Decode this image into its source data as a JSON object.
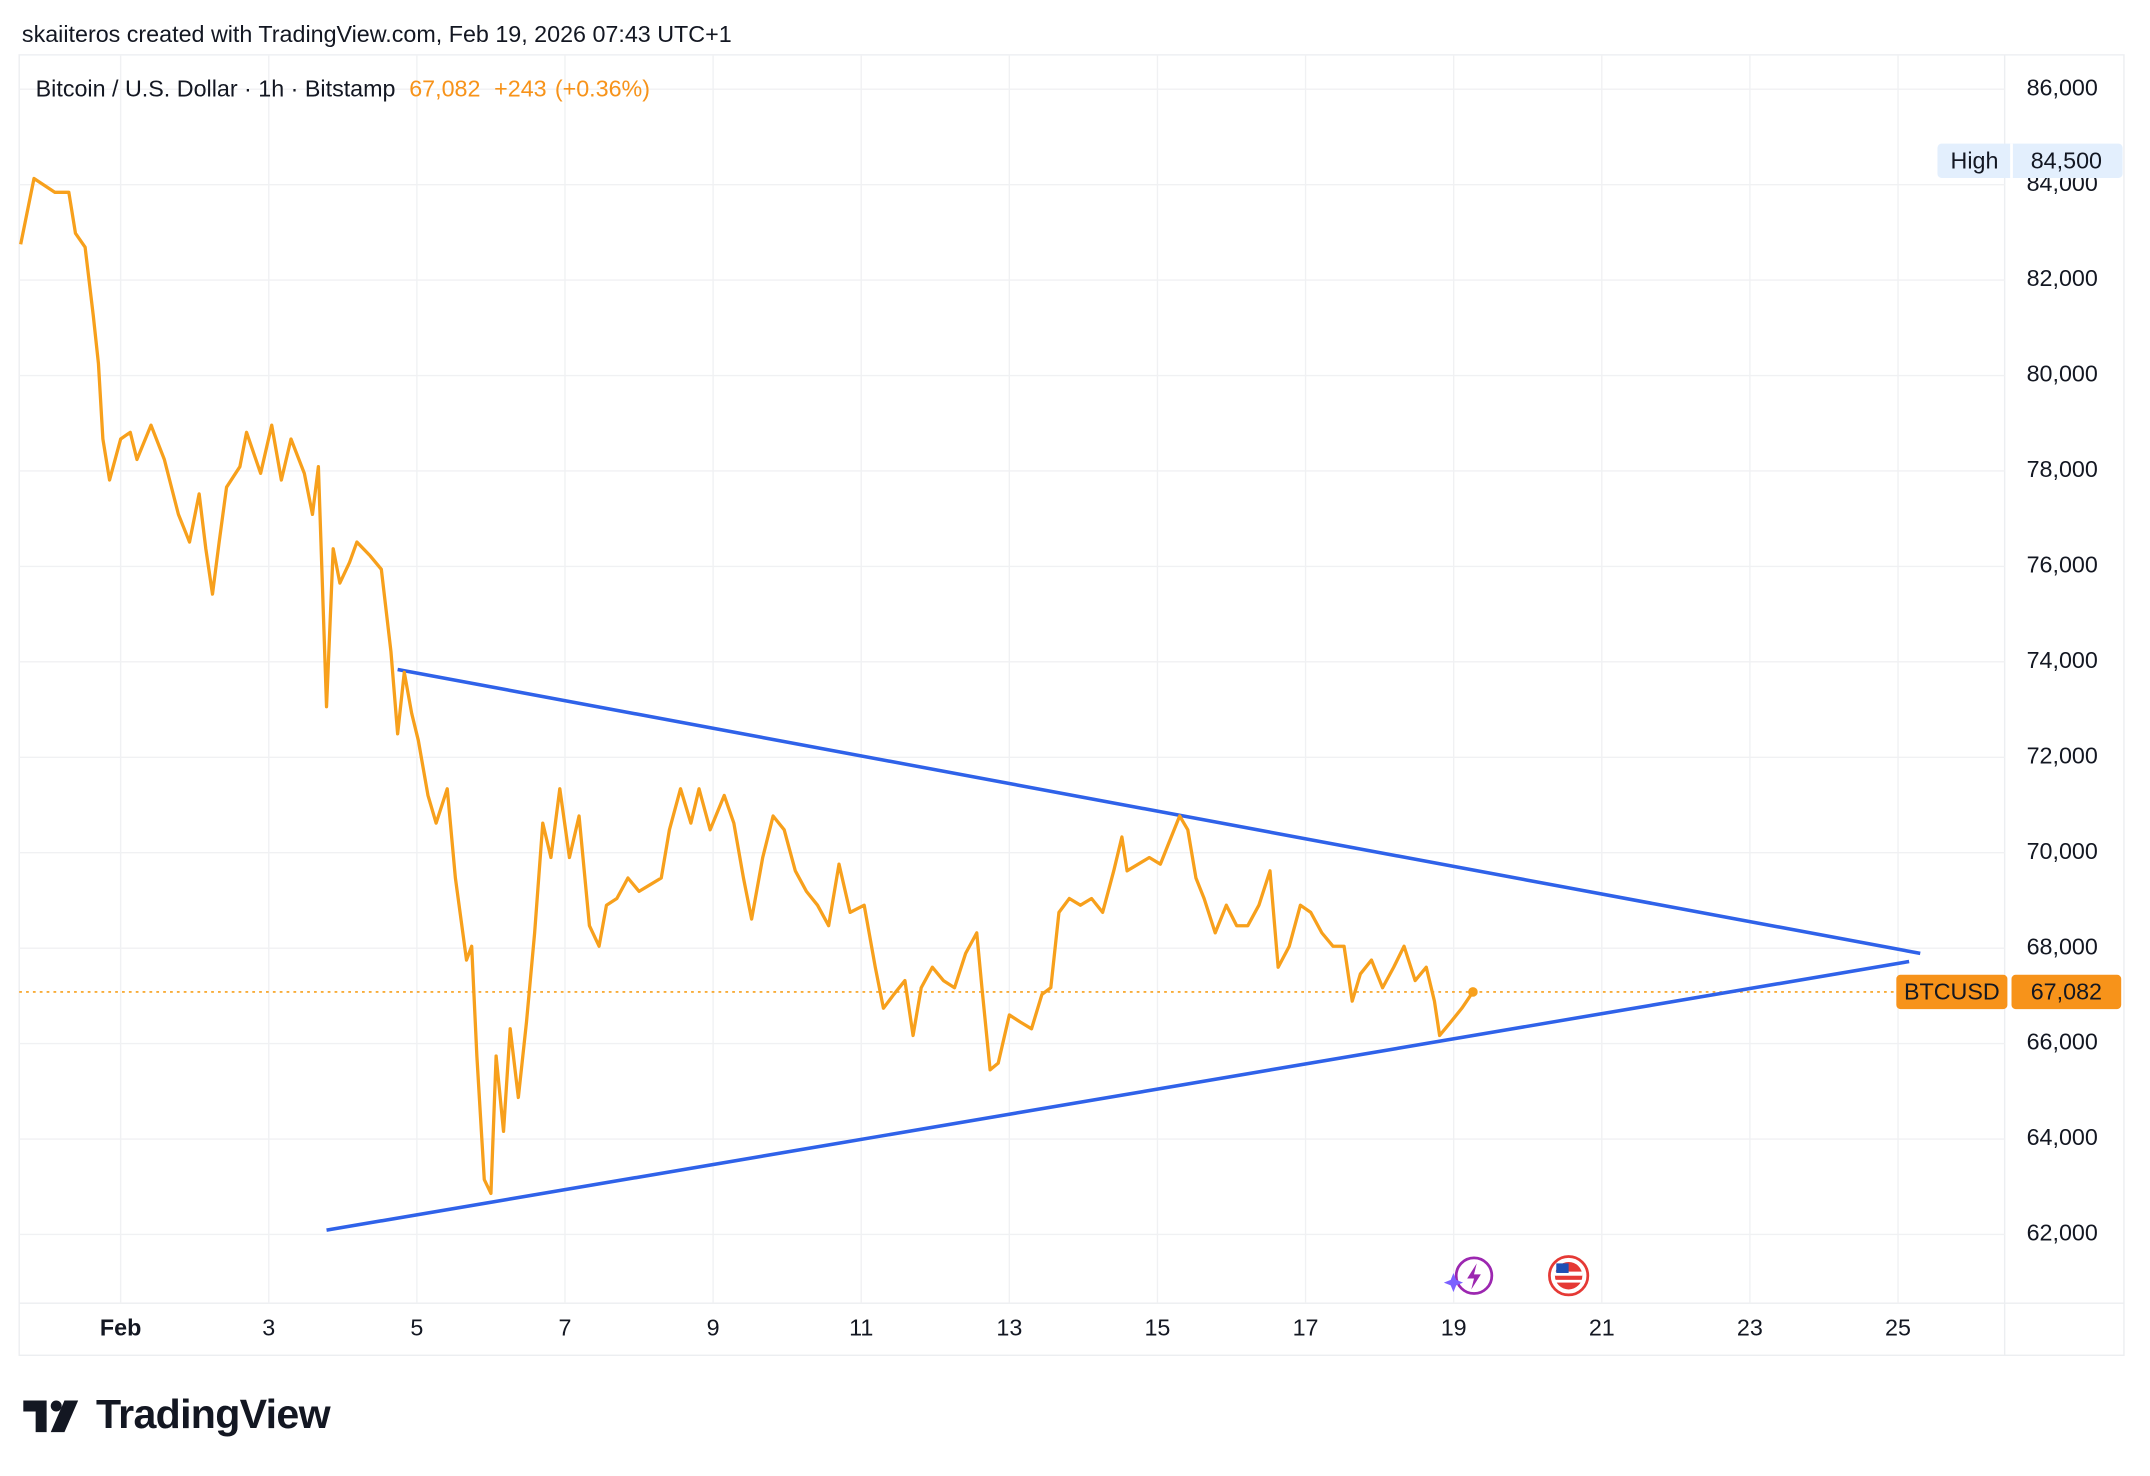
{
  "header": "skaiiteros created with TradingView.com, Feb 19, 2026 07:43 UTC+1",
  "logo": "TradingView",
  "chart_data": {
    "type": "line",
    "title": "Bitcoin / U.S. Dollar · 1h · Bitstamp",
    "price": "67,082",
    "change": "+243",
    "change_pct": "(+0.36%)",
    "xlim": [
      -0.37,
      26.44
    ],
    "ylim": [
      60560,
      86720
    ],
    "xticks": [
      {
        "value": 1,
        "label": "Feb"
      },
      3,
      5,
      7,
      9,
      11,
      13,
      15,
      17,
      19,
      21,
      23,
      25
    ],
    "yticks": [
      {
        "value": 62000,
        "label": "62,000"
      },
      {
        "value": 64000,
        "label": "64,000"
      },
      {
        "value": 66000,
        "label": "66,000"
      },
      {
        "value": 68000,
        "label": "68,000"
      },
      {
        "value": 70000,
        "label": "70,000"
      },
      {
        "value": 72000,
        "label": "72,000"
      },
      {
        "value": 74000,
        "label": "74,000"
      },
      {
        "value": 76000,
        "label": "76,000"
      },
      {
        "value": 78000,
        "label": "78,000"
      },
      {
        "value": 80000,
        "label": "80,000"
      },
      {
        "value": 82000,
        "label": "82,000"
      },
      {
        "value": 84000,
        "label": "84,000"
      },
      {
        "value": 86000,
        "label": "86,000"
      }
    ],
    "grid": true,
    "x": [
      -0.35,
      -0.17,
      0.11,
      0.3,
      0.39,
      0.52,
      0.63,
      0.7,
      0.76,
      0.85,
      1.0,
      1.13,
      1.22,
      1.41,
      1.59,
      1.78,
      1.93,
      2.06,
      2.15,
      2.24,
      2.33,
      2.43,
      2.61,
      2.7,
      2.89,
      3.04,
      3.17,
      3.3,
      3.48,
      3.59,
      3.67,
      3.78,
      3.87,
      3.96,
      4.09,
      4.19,
      4.37,
      4.52,
      4.65,
      4.74,
      4.83,
      4.93,
      5.02,
      5.15,
      5.26,
      5.41,
      5.52,
      5.67,
      5.74,
      5.81,
      5.91,
      6.0,
      6.07,
      6.17,
      6.26,
      6.37,
      6.48,
      6.59,
      6.7,
      6.81,
      6.93,
      7.06,
      7.19,
      7.33,
      7.46,
      7.56,
      7.7,
      7.85,
      8.0,
      8.15,
      8.3,
      8.41,
      8.56,
      8.7,
      8.81,
      8.96,
      9.15,
      9.28,
      9.41,
      9.52,
      9.67,
      9.81,
      9.96,
      10.11,
      10.26,
      10.41,
      10.56,
      10.7,
      10.85,
      11.04,
      11.19,
      11.3,
      11.44,
      11.59,
      11.7,
      11.81,
      11.96,
      12.11,
      12.26,
      12.41,
      12.56,
      12.63,
      12.74,
      12.85,
      13.0,
      13.15,
      13.3,
      13.44,
      13.56,
      13.67,
      13.81,
      13.96,
      14.11,
      14.26,
      14.41,
      14.52,
      14.59,
      14.74,
      14.89,
      15.04,
      15.15,
      15.3,
      15.41,
      15.52,
      15.63,
      15.78,
      15.93,
      16.07,
      16.22,
      16.37,
      16.52,
      16.63,
      16.78,
      16.93,
      17.07,
      17.22,
      17.37,
      17.52,
      17.63,
      17.74,
      17.89,
      18.04,
      18.19,
      18.33,
      18.48,
      18.63,
      18.74,
      18.81,
      18.96,
      19.11,
      19.26
    ],
    "series": [
      {
        "name": "BTCUSD",
        "color": "#f7a01c",
        "values": [
          82750,
          84130,
          83840,
          83840,
          82980,
          82690,
          81260,
          80250,
          78670,
          77810,
          78670,
          78810,
          78240,
          78960,
          78240,
          77090,
          76510,
          77520,
          76370,
          75420,
          76510,
          77660,
          78090,
          78810,
          77950,
          78960,
          77810,
          78670,
          77950,
          77090,
          78090,
          73060,
          76370,
          75650,
          76080,
          76510,
          76220,
          75940,
          74210,
          72490,
          73780,
          72920,
          72350,
          71200,
          70620,
          71340,
          69470,
          67750,
          68040,
          65740,
          63150,
          62860,
          65740,
          64160,
          66310,
          64870,
          66450,
          68320,
          70620,
          69900,
          71340,
          69900,
          70770,
          68470,
          68040,
          68900,
          69040,
          69470,
          69190,
          69330,
          69470,
          70480,
          71340,
          70620,
          71340,
          70480,
          71200,
          70620,
          69470,
          68610,
          69900,
          70770,
          70480,
          69620,
          69190,
          68900,
          68470,
          69760,
          68750,
          68900,
          67600,
          66740,
          67030,
          67320,
          66170,
          67170,
          67600,
          67320,
          67170,
          67890,
          68320,
          67170,
          65450,
          65590,
          66600,
          66450,
          66310,
          67030,
          67170,
          68750,
          69040,
          68900,
          69040,
          68750,
          69620,
          70330,
          69620,
          69760,
          69900,
          69760,
          70190,
          70770,
          70480,
          69470,
          69040,
          68320,
          68900,
          68470,
          68470,
          68900,
          69620,
          67600,
          68040,
          68900,
          68750,
          68320,
          68040,
          68040,
          66890,
          67460,
          67750,
          67170,
          67600,
          68040,
          67320,
          67600,
          66890,
          66170,
          66450,
          66740,
          67082
        ]
      }
    ],
    "trendlines": [
      {
        "color": "#2f62e9",
        "x": [
          4.74,
          25.3
        ],
        "values": [
          73840,
          67890
        ]
      },
      {
        "color": "#2f62e9",
        "x": [
          3.78,
          25.15
        ],
        "values": [
          62090,
          67720
        ]
      }
    ],
    "last": {
      "name": "BTCUSD",
      "value": 67082,
      "label": "67,082"
    },
    "high": {
      "name": "High",
      "value": 84500,
      "label": "84,500"
    }
  }
}
